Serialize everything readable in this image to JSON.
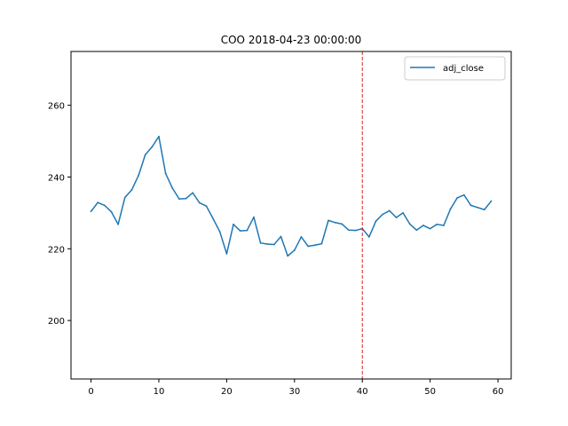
{
  "chart_data": {
    "type": "line",
    "title": "COO 2018-04-23 00:00:00",
    "xlabel": "",
    "ylabel": "",
    "xlim": [
      -2.95,
      61.95
    ],
    "ylim": [
      183.7,
      275.0
    ],
    "xticks": [
      0,
      10,
      20,
      30,
      40,
      50,
      60
    ],
    "yticks": [
      200,
      220,
      240,
      260
    ],
    "grid": false,
    "legend": {
      "position": "upper right",
      "entries": [
        "adj_close"
      ]
    },
    "series": [
      {
        "name": "adj_close",
        "color": "#1f77b4",
        "x": [
          0,
          1,
          2,
          3,
          4,
          5,
          6,
          7,
          8,
          9,
          10,
          11,
          12,
          13,
          14,
          15,
          16,
          17,
          18,
          19,
          20,
          21,
          22,
          23,
          24,
          25,
          26,
          27,
          28,
          29,
          30,
          31,
          32,
          33,
          34,
          35,
          36,
          37,
          38,
          39,
          40,
          41,
          42,
          43,
          44,
          45,
          46,
          47,
          48,
          49,
          50,
          51,
          52,
          53,
          54,
          55,
          56,
          57,
          58,
          59
        ],
        "values": [
          230.4,
          232.9,
          232.1,
          230.3,
          226.8,
          234.3,
          236.4,
          240.4,
          246.2,
          248.4,
          251.3,
          241.0,
          236.9,
          233.9,
          234.0,
          235.6,
          232.8,
          231.9,
          228.4,
          224.7,
          218.6,
          226.8,
          225.0,
          225.1,
          228.8,
          221.6,
          221.3,
          221.2,
          223.4,
          218.0,
          219.6,
          223.3,
          220.7,
          221.0,
          221.4,
          227.9,
          227.3,
          226.9,
          225.2,
          225.1,
          225.6,
          223.3,
          227.7,
          229.6,
          230.6,
          228.7,
          230.0,
          226.9,
          225.2,
          226.5,
          225.6,
          226.8,
          226.5,
          231.1,
          234.2,
          235.0,
          232.1,
          231.5,
          230.9,
          233.3
        ]
      }
    ],
    "annotations": [
      {
        "type": "vline",
        "x": 40,
        "color": "#d62728",
        "style": "dashed"
      }
    ]
  }
}
